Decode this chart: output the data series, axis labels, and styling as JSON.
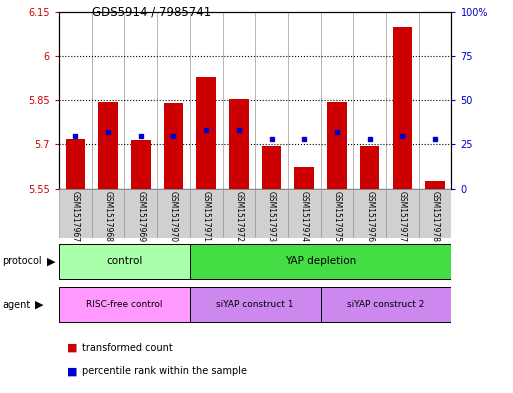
{
  "title": "GDS5914 / 7985741",
  "samples": [
    "GSM1517967",
    "GSM1517968",
    "GSM1517969",
    "GSM1517970",
    "GSM1517971",
    "GSM1517972",
    "GSM1517973",
    "GSM1517974",
    "GSM1517975",
    "GSM1517976",
    "GSM1517977",
    "GSM1517978"
  ],
  "transformed_counts": [
    5.72,
    5.845,
    5.715,
    5.84,
    5.93,
    5.855,
    5.695,
    5.625,
    5.845,
    5.695,
    6.1,
    5.575
  ],
  "percentile_ranks": [
    30,
    32,
    30,
    30,
    33,
    33,
    28,
    28,
    32,
    28,
    30,
    28
  ],
  "bar_baseline": 5.55,
  "ylim_left": [
    5.55,
    6.15
  ],
  "ylim_right": [
    0,
    100
  ],
  "yticks_left": [
    5.55,
    5.7,
    5.85,
    6.0,
    6.15
  ],
  "yticks_right": [
    0,
    25,
    50,
    75,
    100
  ],
  "ytick_labels_left": [
    "5.55",
    "5.7",
    "5.85",
    "6",
    "6.15"
  ],
  "ytick_labels_right": [
    "0",
    "25",
    "50",
    "75",
    "100%"
  ],
  "bar_color": "#cc0000",
  "dot_color": "#0000cc",
  "col_bg": "#d0d0d0",
  "protocol_ctrl_color": "#aaffaa",
  "protocol_yap_color": "#44dd44",
  "agent_risc_color": "#ff99ff",
  "agent_siyap_color": "#cc88ee"
}
